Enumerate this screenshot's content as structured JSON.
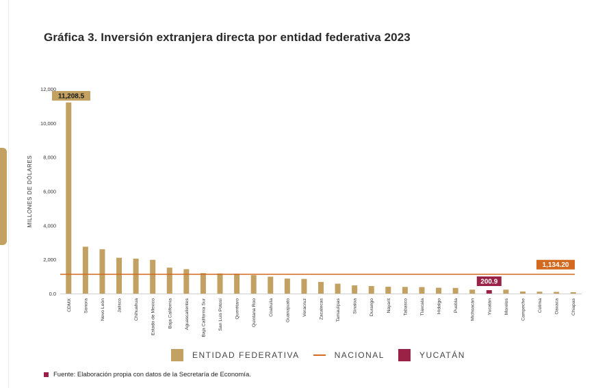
{
  "title": "Gráfica 3. Inversión extranjera directa por entidad federativa 2023",
  "colors": {
    "estado": "#c2a163",
    "nacional": "#d2691e",
    "yucatan": "#9b2247",
    "grid": "#d0d0d0",
    "text": "#333333"
  },
  "legend": {
    "estado": "ENTIDAD FEDERATIVA",
    "nacional": "NACIONAL",
    "yucatan": "YUCATÁN"
  },
  "source": "Fuente: Elaboración propia con datos de la Secretaría de Economía.",
  "chart_data": {
    "type": "bar",
    "ylabel": "MILLONES DE DÓLARES",
    "ylim": [
      0,
      12000
    ],
    "yticks": [
      0,
      2000,
      4000,
      6000,
      8000,
      10000,
      12000
    ],
    "ytick_labels": [
      "0.0",
      "2,000",
      "4,000",
      "6,000",
      "8,000",
      "10,000",
      "12,000"
    ],
    "categories": [
      "CDMX",
      "Sonora",
      "Nevo León",
      "Jalisco",
      "Chihuahua",
      "Estado de Mexico",
      "Baja California",
      "Aguascalientes",
      "Baja California Sur",
      "San Luis Potosí",
      "Querétaro",
      "Quintana Roo",
      "Coahuila",
      "Guanajuato",
      "Veracruz",
      "Zacatecas",
      "Tamaulipas",
      "Sinaloa",
      "Durango",
      "Nayarit",
      "Tabasco",
      "Tlaxcala",
      "Hidalgo",
      "Puebla",
      "Michoacán",
      "Yucatán",
      "Morelos",
      "Campeche",
      "Colima",
      "Oaxaca",
      "Chiapas"
    ],
    "values": [
      11208.5,
      2750,
      2600,
      2100,
      2050,
      1980,
      1520,
      1430,
      1200,
      1180,
      1170,
      1080,
      990,
      880,
      860,
      680,
      580,
      480,
      440,
      400,
      390,
      380,
      340,
      330,
      230,
      200.9,
      230,
      120,
      110,
      100,
      80
    ],
    "highlight": "Yucatán",
    "reference_line": {
      "name": "NACIONAL",
      "value": 1134.2,
      "label": "1,134.20"
    },
    "data_labels": [
      {
        "category": "CDMX",
        "text": "11,208.5"
      },
      {
        "category": "Yucatán",
        "text": "200.9"
      }
    ]
  }
}
